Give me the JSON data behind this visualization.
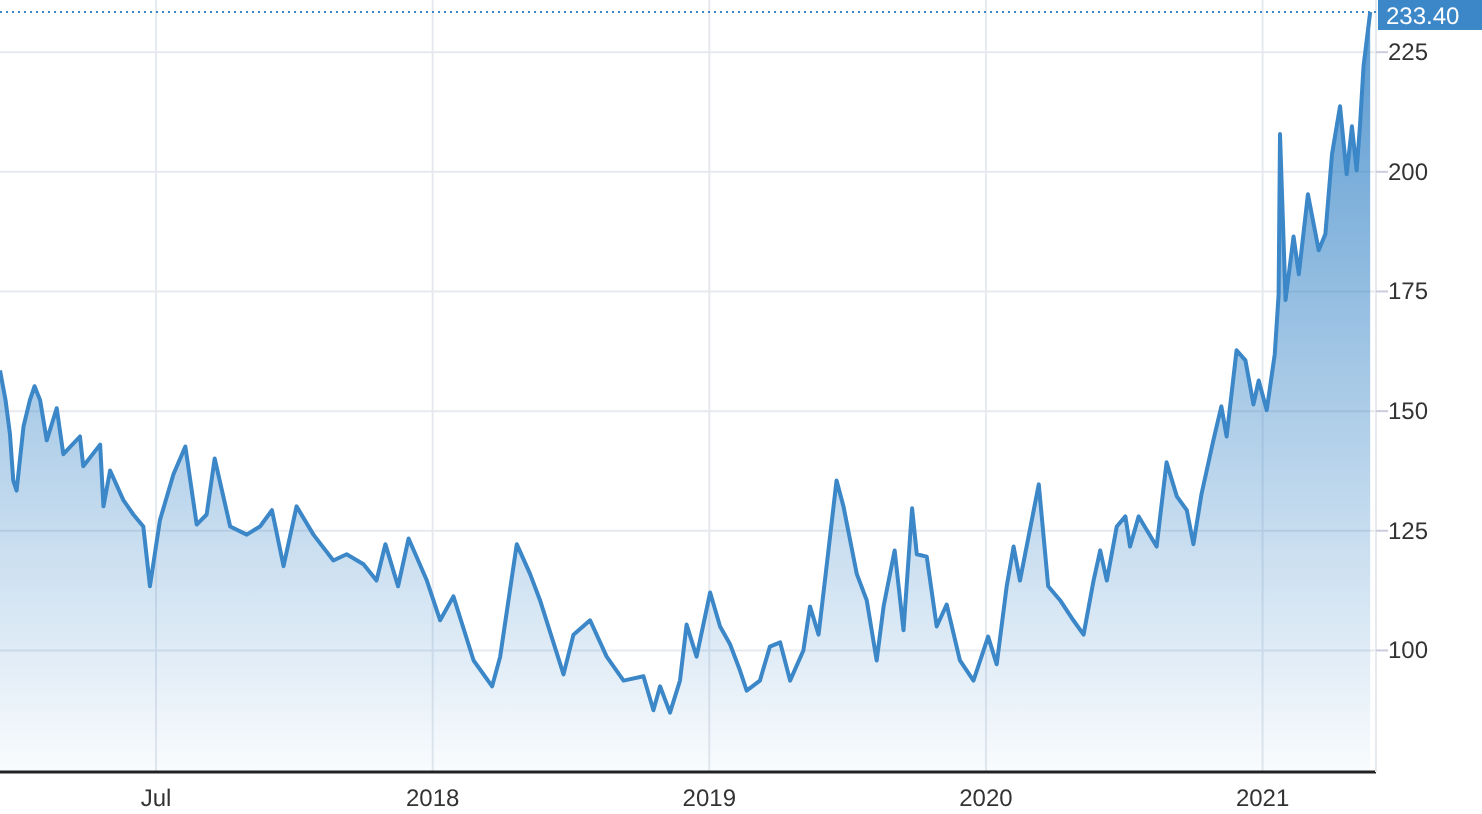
{
  "chart_data": {
    "type": "area",
    "color": "#3b87c8",
    "x": [
      2016.436,
      2016.456,
      2016.472,
      2016.484,
      2016.496,
      2016.521,
      2016.544,
      2016.561,
      2016.581,
      2016.605,
      2016.641,
      2016.665,
      2016.725,
      2016.737,
      2016.798,
      2016.81,
      2016.834,
      2016.882,
      2016.918,
      2016.954,
      2016.978,
      2017.014,
      2017.063,
      2017.106,
      2017.147,
      2017.183,
      2017.212,
      2017.268,
      2017.328,
      2017.376,
      2017.419,
      2017.461,
      2017.508,
      2017.569,
      2017.641,
      2017.689,
      2017.75,
      2017.797,
      2017.829,
      2017.875,
      2017.913,
      2017.979,
      2018.027,
      2018.075,
      2018.148,
      2018.215,
      2018.244,
      2018.304,
      2018.352,
      2018.388,
      2018.473,
      2018.509,
      2018.569,
      2018.629,
      2018.69,
      2018.762,
      2018.798,
      2018.822,
      2018.858,
      2018.894,
      2018.918,
      2018.954,
      2019.003,
      2019.039,
      2019.075,
      2019.111,
      2019.135,
      2019.183,
      2019.219,
      2019.256,
      2019.292,
      2019.34,
      2019.364,
      2019.395,
      2019.424,
      2019.46,
      2019.485,
      2019.533,
      2019.569,
      2019.605,
      2019.63,
      2019.67,
      2019.702,
      2019.733,
      2019.75,
      2019.786,
      2019.822,
      2019.858,
      2019.906,
      2019.955,
      2020.008,
      2020.039,
      2020.075,
      2020.1,
      2020.123,
      2020.191,
      2020.225,
      2020.268,
      2020.316,
      2020.353,
      2020.389,
      2020.413,
      2020.437,
      2020.473,
      2020.504,
      2020.521,
      2020.552,
      2020.617,
      2020.653,
      2020.69,
      2020.726,
      2020.75,
      2020.779,
      2020.822,
      2020.851,
      2020.87,
      2020.906,
      2020.938,
      2020.967,
      2020.986,
      2021.015,
      2021.044,
      2021.058,
      2021.063,
      2021.083,
      2021.112,
      2021.131,
      2021.164,
      2021.203,
      2021.227,
      2021.251,
      2021.28,
      2021.304,
      2021.323,
      2021.34,
      2021.352,
      2021.365,
      2021.389
    ],
    "values": [
      158.5,
      152.3,
      145.2,
      135.5,
      133.4,
      146.8,
      152.3,
      155.2,
      152.3,
      143.9,
      150.6,
      141,
      144.7,
      138.5,
      143,
      130.1,
      137.6,
      131.4,
      128.4,
      125.9,
      113.4,
      127.2,
      136.8,
      142.6,
      126.3,
      128.4,
      140.1,
      125.9,
      124.2,
      125.9,
      129.3,
      117.6,
      130.1,
      124.2,
      118.8,
      120.1,
      118,
      114.6,
      122.2,
      113.4,
      123.4,
      114.6,
      106.3,
      111.3,
      97.9,
      92.5,
      98.7,
      122.2,
      116,
      110.5,
      95,
      103.3,
      106.3,
      98.7,
      93.7,
      94.6,
      87.5,
      92.5,
      87,
      93.7,
      105.4,
      98.7,
      112.1,
      105,
      101.3,
      95.8,
      91.6,
      93.7,
      100.8,
      101.7,
      93.7,
      100,
      109.2,
      103.3,
      117.6,
      135.5,
      130.1,
      116,
      110.5,
      97.9,
      109.2,
      120.9,
      104.2,
      129.7,
      120.1,
      119.6,
      105,
      109.6,
      97.9,
      93.7,
      102.9,
      97.1,
      113.4,
      121.7,
      114.6,
      134.7,
      113.4,
      110.5,
      106.3,
      103.3,
      114.6,
      120.9,
      114.6,
      125.9,
      128,
      121.7,
      128,
      121.7,
      139.3,
      132.2,
      129.3,
      122.2,
      132.6,
      143.9,
      151,
      144.7,
      162.7,
      160.6,
      151.4,
      156.4,
      150.2,
      161.9,
      174.4,
      207.9,
      173.2,
      186.5,
      178.6,
      195.3,
      183.6,
      187,
      203.7,
      213.7,
      199.5,
      209.5,
      200.3,
      209.5,
      222.1,
      233.4
    ],
    "xlim": [
      2016.436,
      2021.41
    ],
    "xticks": [
      {
        "value": 2017,
        "label": "Jul"
      },
      2018,
      2019,
      2020,
      2021
    ],
    "ylim": [
      74.6,
      235.9
    ],
    "yticks": [
      100,
      125,
      150,
      175,
      200,
      225
    ],
    "grid": true,
    "ref_lines": [
      {
        "axis": "y",
        "value": 233.4,
        "label": "233.40",
        "color": "#3b87c8",
        "line_style": "dotted"
      }
    ]
  }
}
